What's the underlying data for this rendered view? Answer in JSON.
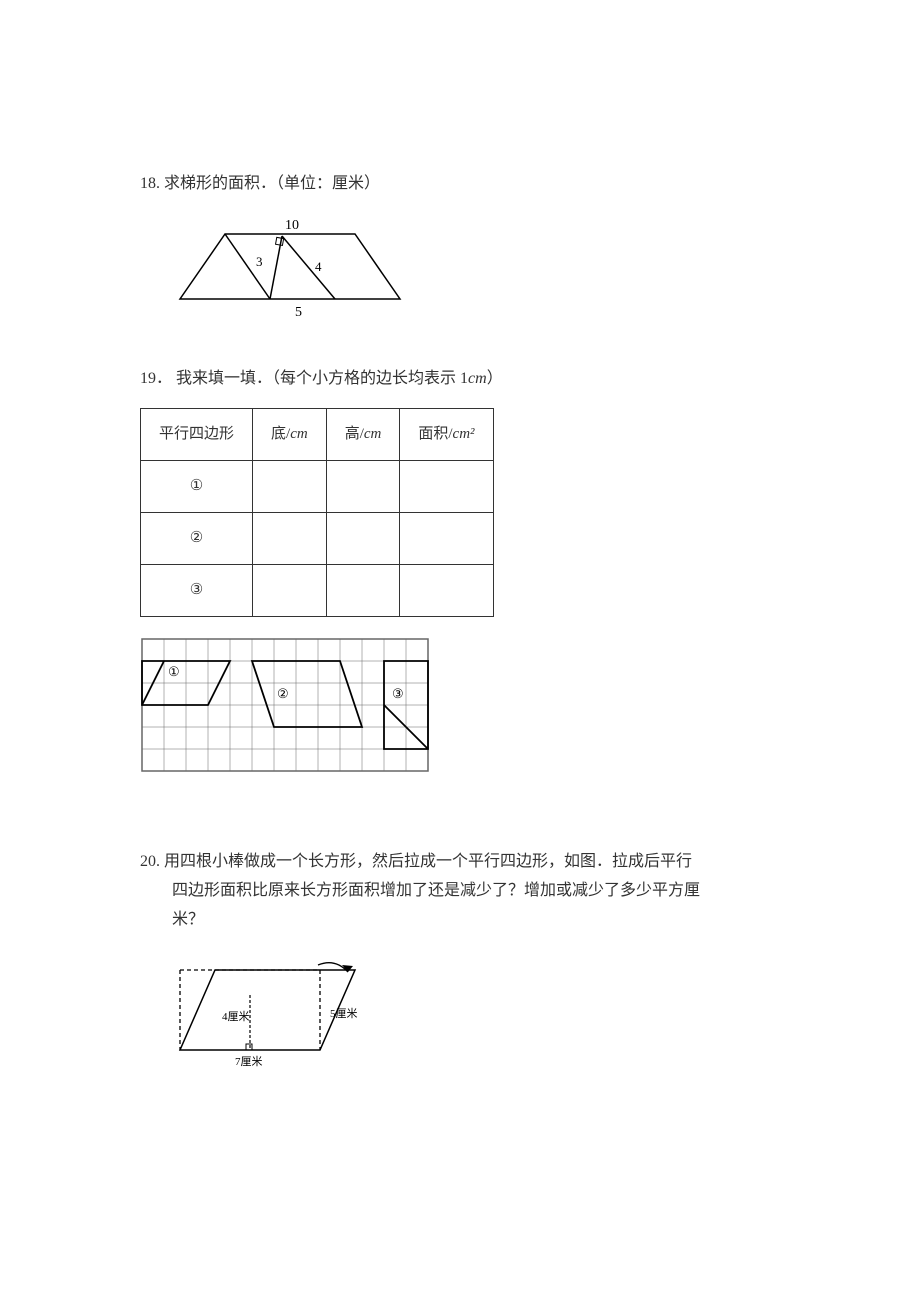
{
  "questions": {
    "q18": {
      "number": "18.",
      "text": "求梯形的面积．（单位：厘米）",
      "trapezoid": {
        "top_width": "10",
        "left_inner": "3",
        "right_inner": "4",
        "bottom_inner": "5",
        "stroke_color": "#000000",
        "stroke_width": 1.5,
        "fill": "none"
      }
    },
    "q19": {
      "number": "19．",
      "text": "我来填一填．（每个小方格的边长均表示 1",
      "unit": "cm",
      "closing": "）",
      "table": {
        "headers": [
          "平行四边形",
          "底/",
          "高/",
          "面积/"
        ],
        "header_units": [
          "",
          "cm",
          "cm",
          "cm²"
        ],
        "rows": [
          "①",
          "②",
          "③"
        ],
        "border_color": "#333333"
      },
      "grid": {
        "cols": 13,
        "rows": 6,
        "cell_size": 22,
        "grid_color": "#666666",
        "shape_color": "#000000",
        "shape_stroke_width": 1.8,
        "labels": [
          "①",
          "②",
          "③"
        ]
      }
    },
    "q20": {
      "number": "20.",
      "line1": "用四根小棒做成一个长方形，然后拉成一个平行四边形，如图．拉成后平行",
      "line2": "四边形面积比原来长方形面积增加了还是减少了？增加或减少了多少平方厘",
      "line3": "米？",
      "parallelogram": {
        "height_label": "4厘米",
        "right_label": "5厘米",
        "bottom_label": "7厘米",
        "dash_color": "#000000",
        "solid_color": "#000000",
        "stroke_width": 1.5
      }
    }
  }
}
